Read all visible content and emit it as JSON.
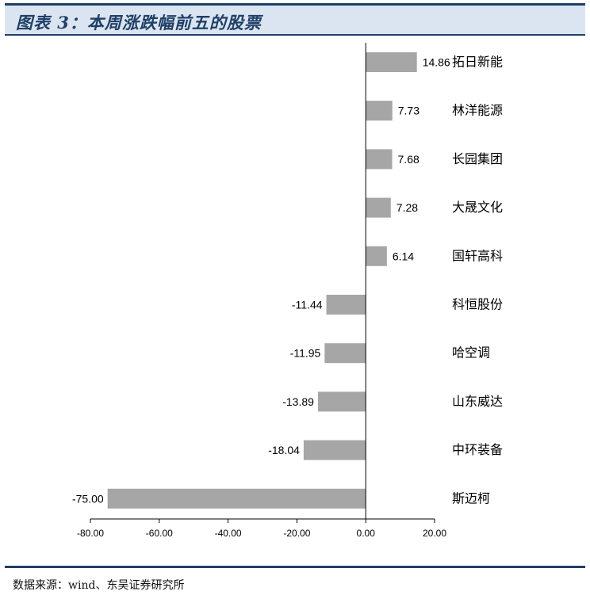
{
  "title": "图表 3：本周涨跌幅前五的股票",
  "source": "数据来源：wind、东吴证券研究所",
  "colors": {
    "bar": "#a6a6a6",
    "rule": "#1f3f66",
    "title_bg": "#dbe5f1",
    "title_text": "#1f3f66"
  },
  "chart_data": {
    "type": "bar",
    "orientation": "horizontal",
    "categories": [
      "拓日新能",
      "林洋能源",
      "长园集团",
      "大晟文化",
      "国轩高科",
      "科恒股份",
      "哈空调",
      "山东威达",
      "中环装备",
      "斯迈柯"
    ],
    "values": [
      14.86,
      7.73,
      7.68,
      7.28,
      6.14,
      -11.44,
      -11.95,
      -13.89,
      -18.04,
      -75.0
    ],
    "value_labels": [
      "14.86",
      "7.73",
      "7.68",
      "7.28",
      "6.14",
      "-11.44",
      "-11.95",
      "-13.89",
      "-18.04",
      "-75.00"
    ],
    "xlim": [
      -80,
      20
    ],
    "xticks": [
      -80,
      -60,
      -40,
      -20,
      0,
      20
    ],
    "xtick_labels": [
      "-80.00",
      "-60.00",
      "-40.00",
      "-20.00",
      "0.00",
      "20.00"
    ],
    "grid": false,
    "legend": "none"
  }
}
